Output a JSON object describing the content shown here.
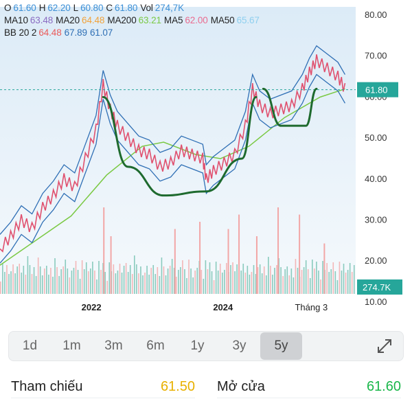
{
  "legend": {
    "row1": [
      {
        "label": "O",
        "value": "61.60"
      },
      {
        "label": "H",
        "value": "62.20"
      },
      {
        "label": "L",
        "value": "60.80"
      },
      {
        "label": "C",
        "value": "61.80"
      },
      {
        "label": "Vol",
        "value": "274,7K"
      }
    ],
    "row2": [
      {
        "label": "MA10",
        "value": "63.48",
        "color": "#8a6bc2"
      },
      {
        "label": "MA20",
        "value": "64.48",
        "color": "#f2a23a"
      },
      {
        "label": "MA200",
        "value": "63.21",
        "color": "#7ac943"
      },
      {
        "label": "MA5",
        "value": "62.00",
        "color": "#ea6b8f"
      },
      {
        "label": "MA50",
        "value": "65.67",
        "color": "#8ecfef"
      }
    ],
    "row3": [
      {
        "label": "BB 20 2",
        "value": "",
        "color": "#222222"
      },
      {
        "label": "",
        "value": "64.48",
        "color": "#ea5a5a"
      },
      {
        "label": "",
        "value": "67.89",
        "color": "#2f6fb5"
      },
      {
        "label": "",
        "value": "61.07",
        "color": "#2f6fb5"
      }
    ]
  },
  "chart_data": {
    "type": "line",
    "ylim": [
      12,
      82
    ],
    "y_ticks": [
      "80.00",
      "70.00",
      "60.00",
      "50.00",
      "40.00",
      "30.00",
      "20.00",
      "10.00"
    ],
    "x_labels": [
      "2022",
      "2024",
      "Tháng 3"
    ],
    "last_price_label": "61.80",
    "last_volume_label": "274.7K",
    "last_price": 61.8,
    "colors": {
      "price": "#e0506e",
      "bollinger": "#2f6fb5",
      "ma200": "#7ac943",
      "pattern": "#1e6a2e",
      "up_volume": "#6fbfae",
      "down_volume": "#f2a6a6",
      "price_tag": "#26a69a"
    },
    "price_points": [
      [
        0,
        23
      ],
      [
        3,
        26
      ],
      [
        6,
        30
      ],
      [
        9,
        28
      ],
      [
        12,
        33
      ],
      [
        15,
        36
      ],
      [
        18,
        40
      ],
      [
        21,
        38
      ],
      [
        24,
        45
      ],
      [
        27,
        52
      ],
      [
        29,
        63
      ],
      [
        31,
        57
      ],
      [
        33,
        53
      ],
      [
        36,
        50
      ],
      [
        39,
        47
      ],
      [
        42,
        46
      ],
      [
        45,
        43
      ],
      [
        48,
        44
      ],
      [
        51,
        47
      ],
      [
        54,
        46
      ],
      [
        57,
        45
      ],
      [
        58,
        40
      ],
      [
        60,
        42
      ],
      [
        63,
        44
      ],
      [
        66,
        46
      ],
      [
        69,
        53
      ],
      [
        71,
        62
      ],
      [
        73,
        58
      ],
      [
        76,
        56
      ],
      [
        79,
        57
      ],
      [
        82,
        58
      ],
      [
        85,
        62
      ],
      [
        87,
        66
      ],
      [
        89,
        69
      ],
      [
        92,
        67
      ],
      [
        95,
        65
      ],
      [
        97,
        62
      ]
    ],
    "ma200_points": [
      [
        0,
        19
      ],
      [
        10,
        25
      ],
      [
        20,
        31
      ],
      [
        30,
        41
      ],
      [
        40,
        48
      ],
      [
        46,
        49
      ],
      [
        55,
        46
      ],
      [
        62,
        45
      ],
      [
        70,
        48
      ],
      [
        80,
        55
      ],
      [
        90,
        60
      ],
      [
        97,
        62
      ]
    ],
    "cup_handle_pattern": {
      "cup": [
        [
          29,
          60
        ],
        [
          36,
          43
        ],
        [
          46,
          36
        ],
        [
          58,
          37
        ],
        [
          68,
          45
        ],
        [
          72,
          60
        ]
      ],
      "handle": [
        [
          74,
          62
        ],
        [
          79,
          53
        ],
        [
          86,
          53
        ],
        [
          89,
          62
        ]
      ]
    },
    "volume_bars": [
      {
        "pos": 29,
        "value": 0.6
      },
      {
        "pos": 31,
        "value": 0.4
      },
      {
        "pos": 49,
        "value": 0.45
      },
      {
        "pos": 56,
        "value": 0.5
      },
      {
        "pos": 64,
        "value": 0.45
      },
      {
        "pos": 67,
        "value": 0.55
      },
      {
        "pos": 72,
        "value": 0.4
      },
      {
        "pos": 78,
        "value": 0.6
      },
      {
        "pos": 84,
        "value": 0.55
      },
      {
        "pos": 91,
        "value": 0.35
      }
    ]
  },
  "range_selector": {
    "items": [
      "1d",
      "1m",
      "3m",
      "6m",
      "1y",
      "3y",
      "5y"
    ],
    "active": "5y"
  },
  "info": {
    "left_label": "Tham chiếu",
    "left_value": "61.50",
    "right_label": "Mở cửa",
    "right_value": "61.60"
  }
}
